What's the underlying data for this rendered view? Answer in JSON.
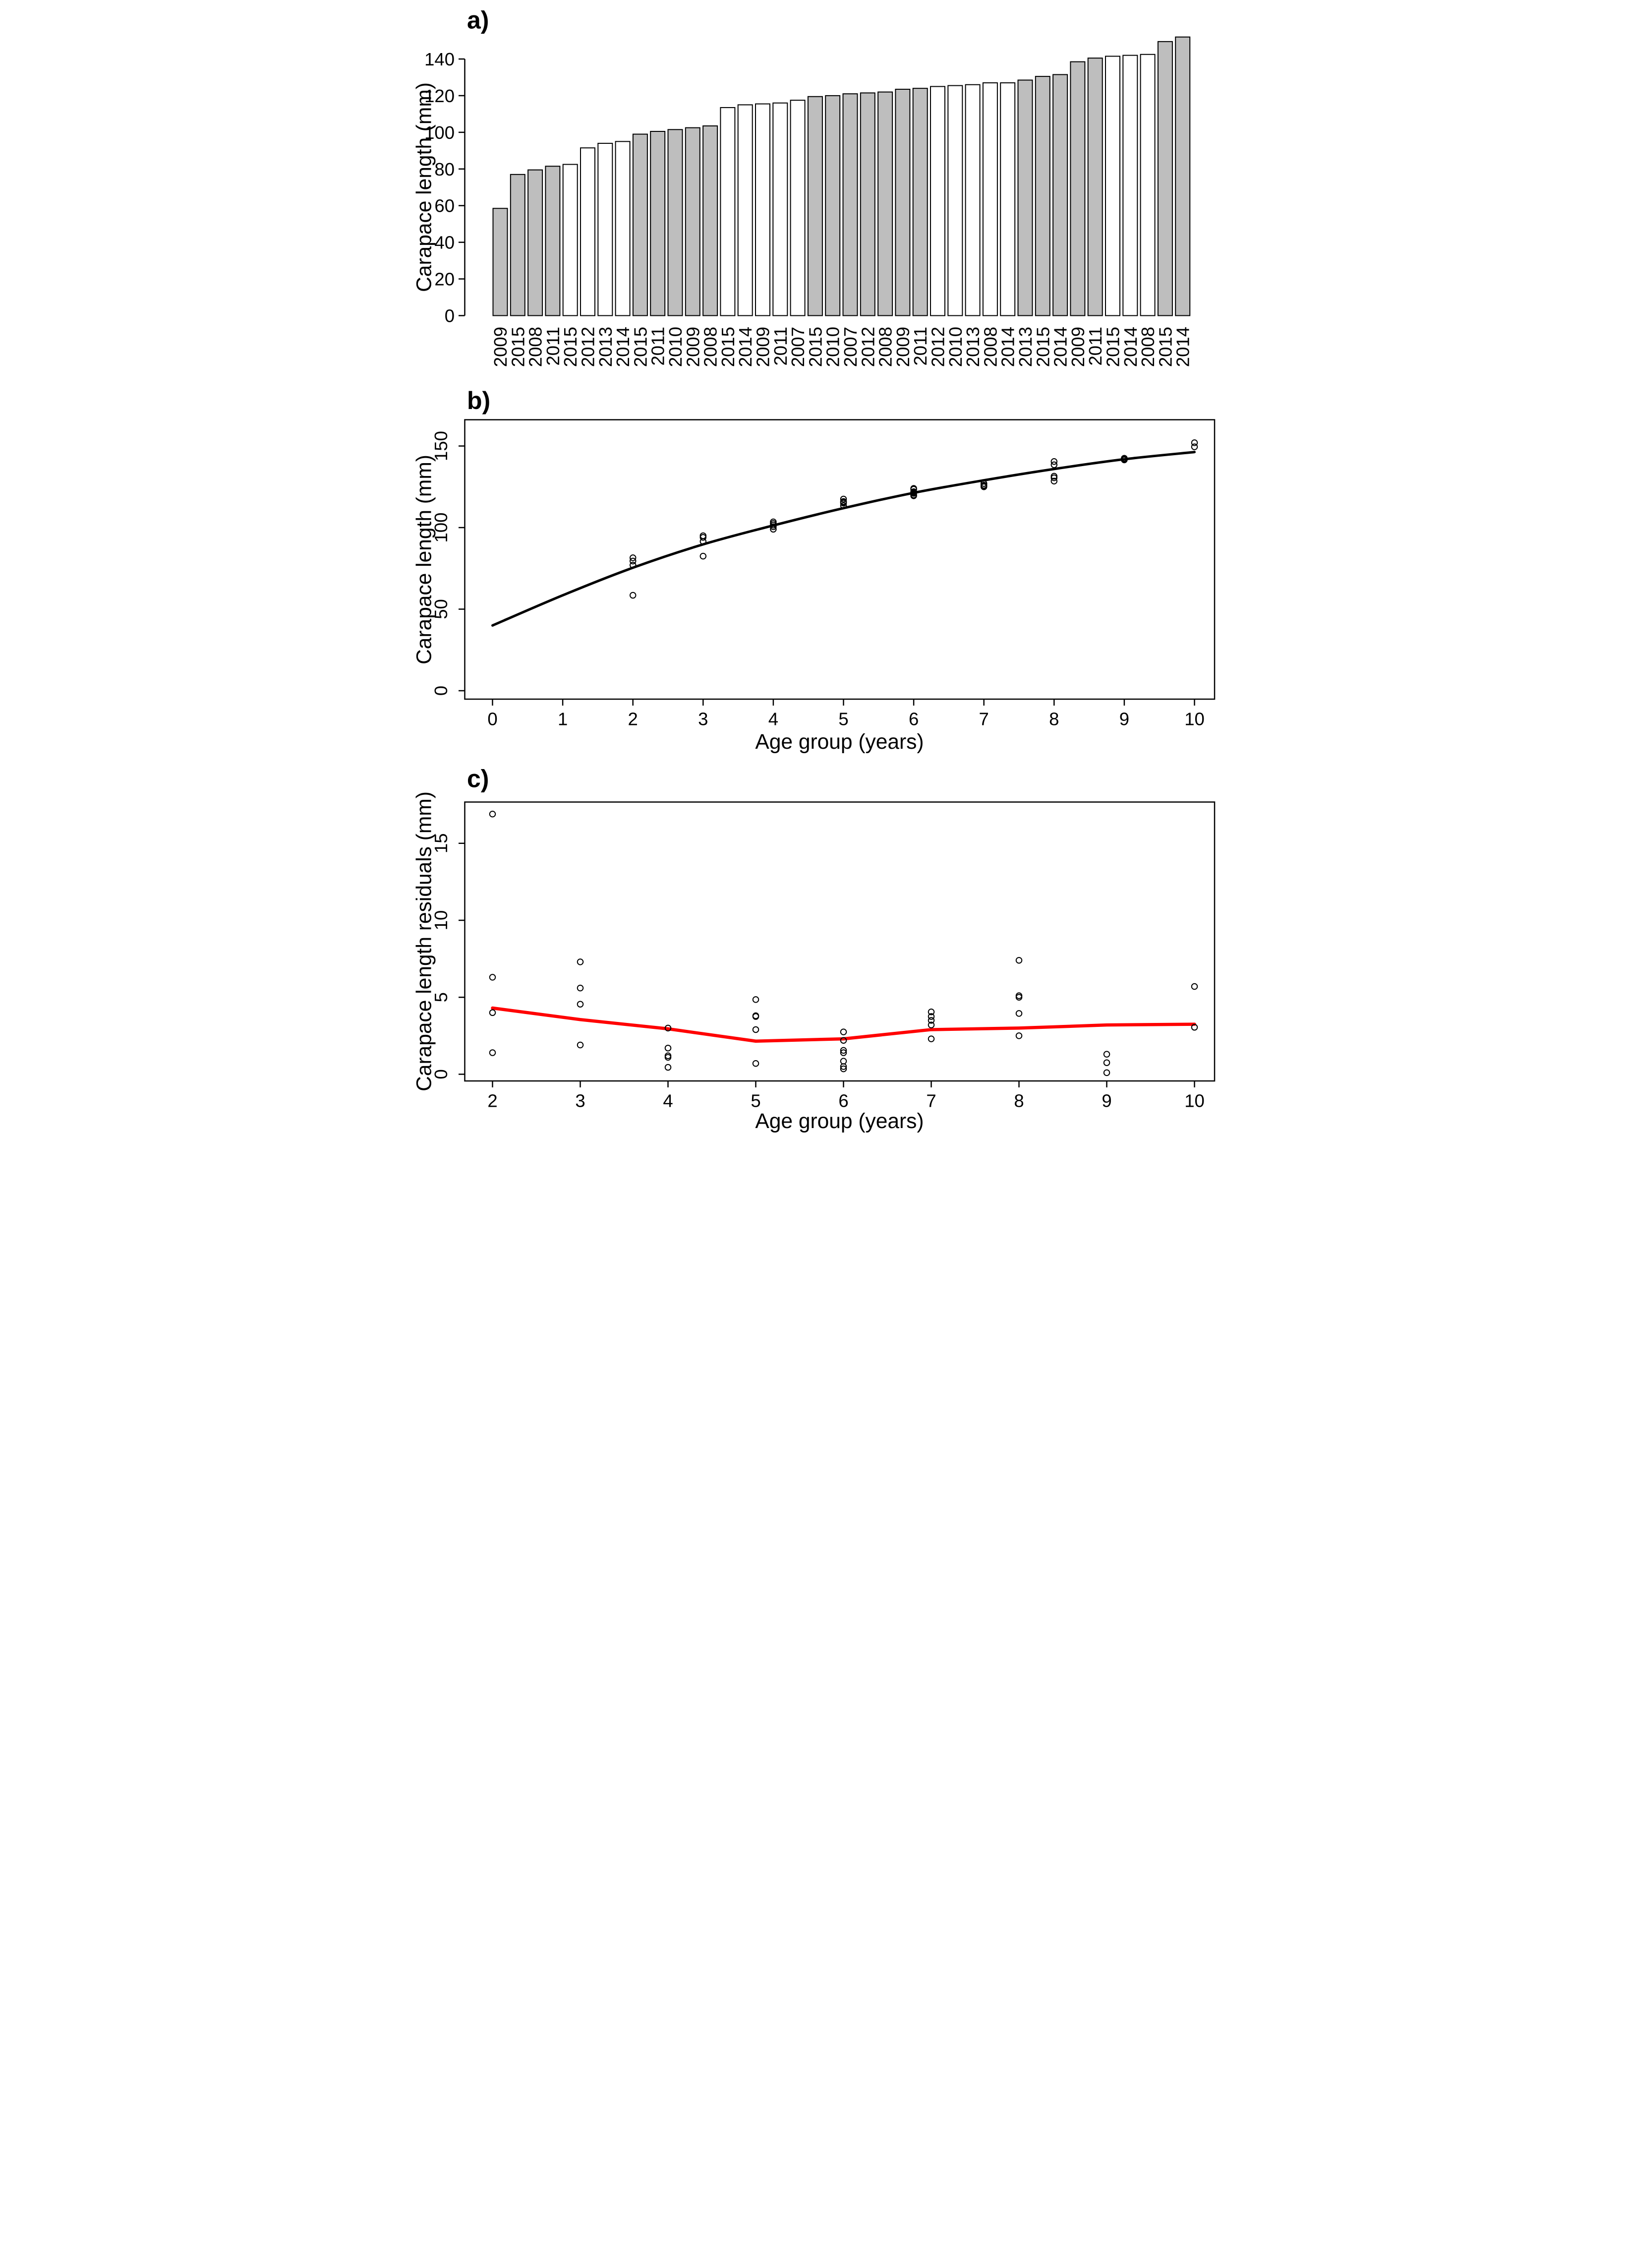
{
  "figure_title": "",
  "chart_data": [
    {
      "id": "a",
      "type": "bar",
      "panel_label": "a)",
      "xlabel": "",
      "ylabel": "Carapace length (mm)",
      "ylim": [
        0,
        140
      ],
      "yticks": [
        0,
        20,
        40,
        60,
        80,
        100,
        120,
        140
      ],
      "grid": false,
      "bar_colors": {
        "gray": "#bebebe",
        "white": "#ffffff",
        "border": "#000000"
      },
      "bars": [
        {
          "year": "2009",
          "value": 58.5,
          "fill": "gray"
        },
        {
          "year": "2015",
          "value": 77,
          "fill": "gray"
        },
        {
          "year": "2008",
          "value": 79.5,
          "fill": "gray"
        },
        {
          "year": "2011",
          "value": 81.5,
          "fill": "gray"
        },
        {
          "year": "2015",
          "value": 82.5,
          "fill": "white"
        },
        {
          "year": "2012",
          "value": 91.5,
          "fill": "white"
        },
        {
          "year": "2013",
          "value": 94,
          "fill": "white"
        },
        {
          "year": "2014",
          "value": 95,
          "fill": "white"
        },
        {
          "year": "2015",
          "value": 99,
          "fill": "gray"
        },
        {
          "year": "2011",
          "value": 100.5,
          "fill": "gray"
        },
        {
          "year": "2010",
          "value": 101.5,
          "fill": "gray"
        },
        {
          "year": "2009",
          "value": 102.5,
          "fill": "gray"
        },
        {
          "year": "2008",
          "value": 103.5,
          "fill": "gray"
        },
        {
          "year": "2015",
          "value": 113.5,
          "fill": "white"
        },
        {
          "year": "2014",
          "value": 115,
          "fill": "white"
        },
        {
          "year": "2009",
          "value": 115.5,
          "fill": "white"
        },
        {
          "year": "2011",
          "value": 116,
          "fill": "white"
        },
        {
          "year": "2007",
          "value": 117.5,
          "fill": "white"
        },
        {
          "year": "2015",
          "value": 119.5,
          "fill": "gray"
        },
        {
          "year": "2010",
          "value": 120,
          "fill": "gray"
        },
        {
          "year": "2007",
          "value": 121,
          "fill": "gray"
        },
        {
          "year": "2012",
          "value": 121.5,
          "fill": "gray"
        },
        {
          "year": "2008",
          "value": 122,
          "fill": "gray"
        },
        {
          "year": "2009",
          "value": 123.5,
          "fill": "gray"
        },
        {
          "year": "2011",
          "value": 124,
          "fill": "gray"
        },
        {
          "year": "2012",
          "value": 125,
          "fill": "white"
        },
        {
          "year": "2010",
          "value": 125.5,
          "fill": "white"
        },
        {
          "year": "2013",
          "value": 126,
          "fill": "white"
        },
        {
          "year": "2008",
          "value": 127,
          "fill": "white"
        },
        {
          "year": "2014",
          "value": 127,
          "fill": "white"
        },
        {
          "year": "2013",
          "value": 128.5,
          "fill": "gray"
        },
        {
          "year": "2015",
          "value": 130.5,
          "fill": "gray"
        },
        {
          "year": "2014",
          "value": 131.5,
          "fill": "gray"
        },
        {
          "year": "2009",
          "value": 138.5,
          "fill": "gray"
        },
        {
          "year": "2011",
          "value": 140.5,
          "fill": "gray"
        },
        {
          "year": "2015",
          "value": 141.5,
          "fill": "white"
        },
        {
          "year": "2014",
          "value": 142,
          "fill": "white"
        },
        {
          "year": "2008",
          "value": 142.5,
          "fill": "white"
        },
        {
          "year": "2015",
          "value": 149.5,
          "fill": "gray"
        },
        {
          "year": "2014",
          "value": 152,
          "fill": "gray"
        }
      ]
    },
    {
      "id": "b",
      "type": "scatter",
      "panel_label": "b)",
      "xlabel": "Age group (years)",
      "ylabel": "Carapace length (mm)",
      "xlim": [
        0,
        10
      ],
      "ylim": [
        0,
        160
      ],
      "xticks": [
        0,
        1,
        2,
        3,
        4,
        5,
        6,
        7,
        8,
        9,
        10
      ],
      "yticks": [
        0,
        50,
        100,
        150
      ],
      "grid": false,
      "marker": {
        "shape": "open-circle",
        "color": "#000000"
      },
      "groups": [
        {
          "age": 2,
          "values": [
            58.5,
            77,
            79.5,
            81.5
          ]
        },
        {
          "age": 3,
          "values": [
            82.5,
            91.5,
            94,
            95
          ]
        },
        {
          "age": 4,
          "values": [
            99,
            100.5,
            101.5,
            102.5,
            103.5
          ]
        },
        {
          "age": 5,
          "values": [
            113.5,
            115,
            115.5,
            116,
            117.5
          ]
        },
        {
          "age": 6,
          "values": [
            119.5,
            120,
            121,
            121.5,
            122,
            123.5,
            124
          ]
        },
        {
          "age": 7,
          "values": [
            125,
            125.5,
            126,
            127,
            127
          ]
        },
        {
          "age": 8,
          "values": [
            128.5,
            130.5,
            131.5,
            138.5,
            140.5
          ]
        },
        {
          "age": 9,
          "values": [
            141.5,
            142,
            142.5
          ]
        },
        {
          "age": 10,
          "values": [
            149.5,
            152
          ]
        }
      ],
      "curve": {
        "name": "fitted growth curve",
        "color": "#000000",
        "x": [
          0,
          1,
          2,
          3,
          4,
          5,
          6,
          7,
          8,
          9,
          10
        ],
        "y": [
          40,
          58.5,
          75.4,
          89.7,
          101.3,
          111.9,
          121.3,
          129,
          135.9,
          141.9,
          146.3
        ]
      }
    },
    {
      "id": "c",
      "type": "scatter",
      "panel_label": "c)",
      "xlabel": "Age group (years)",
      "ylabel": "Carapace length residuals (mm)",
      "xlim": [
        2,
        10
      ],
      "ylim": [
        0,
        17
      ],
      "xticks": [
        2,
        3,
        4,
        5,
        6,
        7,
        8,
        9,
        10
      ],
      "yticks": [
        0,
        5,
        10,
        15
      ],
      "grid": false,
      "marker": {
        "shape": "open-circle",
        "color": "#000000"
      },
      "groups": [
        {
          "age": 2,
          "values": [
            16.9,
            6.3,
            4.0,
            1.4
          ]
        },
        {
          "age": 3,
          "values": [
            7.3,
            5.6,
            4.55,
            1.9
          ]
        },
        {
          "age": 4,
          "values": [
            3.0,
            1.7,
            1.2,
            1.1,
            0.45
          ]
        },
        {
          "age": 5,
          "values": [
            4.85,
            3.8,
            3.75,
            2.9,
            0.7
          ]
        },
        {
          "age": 6,
          "values": [
            2.75,
            2.2,
            1.55,
            1.4,
            0.85,
            0.5,
            0.35
          ]
        },
        {
          "age": 7,
          "values": [
            4.05,
            3.75,
            3.5,
            3.2,
            2.3
          ]
        },
        {
          "age": 8,
          "values": [
            7.4,
            5.1,
            5.0,
            3.95,
            2.5
          ]
        },
        {
          "age": 9,
          "values": [
            1.3,
            0.75,
            0.1
          ]
        },
        {
          "age": 10,
          "values": [
            5.7,
            3.05
          ]
        }
      ],
      "lowess": {
        "name": "lowess smoother",
        "color": "#ff0000",
        "x": [
          2,
          3,
          4,
          5,
          6,
          7,
          8,
          9,
          10
        ],
        "y": [
          4.3,
          3.55,
          2.95,
          2.15,
          2.3,
          2.9,
          3.0,
          3.2,
          3.25
        ]
      }
    }
  ]
}
